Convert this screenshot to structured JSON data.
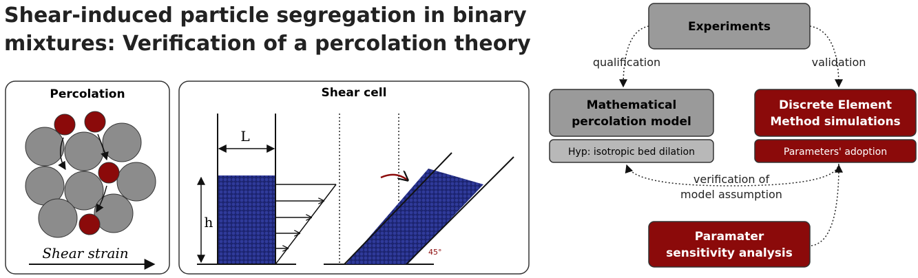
{
  "header": {
    "title": {
      "lines": [
        "Shear-induced particle segregation in binary",
        "mixtures: Verification of a percolation theory"
      ]
    }
  },
  "panels": {
    "percolation": {
      "title": "Percolation",
      "caption": "Shear strain"
    },
    "shear_cell": {
      "title": "Shear cell",
      "length_label": "L",
      "height_label": "h",
      "angle_label": "45°"
    }
  },
  "nodes": [
    {
      "lines": [
        "Experiments"
      ]
    },
    {
      "lines": [
        "Mathematical",
        "percolation model"
      ]
    },
    {
      "lines": [
        "Hyp: isotropic bed dilation"
      ]
    },
    {
      "lines": [
        "Discrete Element",
        "Method simulations"
      ]
    },
    {
      "lines": [
        "Parameters' adoption"
      ]
    },
    {
      "lines": [
        "Paramater",
        "sensitivity analysis"
      ]
    }
  ],
  "edges": [
    {
      "label": [
        "qualification"
      ]
    },
    {
      "label": [
        "validation"
      ]
    },
    {
      "label": [
        "verification of",
        "model assumption"
      ]
    }
  ]
}
